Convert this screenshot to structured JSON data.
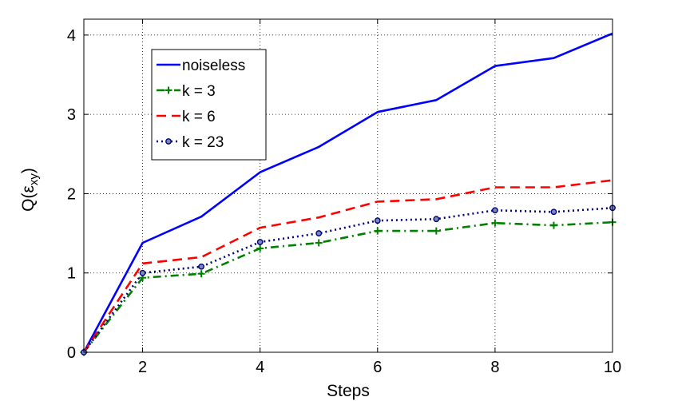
{
  "chart_data": {
    "type": "line",
    "xlabel": "Steps",
    "ylabel": {
      "main": "Q(",
      "symbol": "ε",
      "subscript": "xy",
      "close": ")"
    },
    "xlim": [
      1,
      10
    ],
    "ylim": [
      0,
      4.2
    ],
    "xticks": [
      2,
      4,
      6,
      8,
      10
    ],
    "yticks": [
      0,
      1,
      2,
      3,
      4
    ],
    "grid": true,
    "legend_position": "top-left",
    "x": [
      1,
      2,
      3,
      4,
      5,
      6,
      7,
      8,
      9,
      10
    ],
    "series": [
      {
        "name": "noiseless",
        "color": "#0000ff",
        "style": "solid",
        "marker": "none",
        "values": [
          0,
          1.38,
          1.71,
          2.27,
          2.59,
          3.03,
          3.18,
          3.61,
          3.71,
          4.02
        ]
      },
      {
        "name": "k = 3",
        "color": "#008000",
        "style": "dashdot",
        "marker": "plus",
        "values": [
          0,
          0.94,
          0.99,
          1.31,
          1.38,
          1.53,
          1.53,
          1.63,
          1.6,
          1.64
        ]
      },
      {
        "name": "k = 6",
        "color": "#ff0000",
        "style": "dashed",
        "marker": "none",
        "values": [
          0,
          1.12,
          1.2,
          1.57,
          1.7,
          1.9,
          1.93,
          2.08,
          2.08,
          2.17
        ]
      },
      {
        "name": "k = 23",
        "color": "#00007a",
        "style": "dotted",
        "marker": "circle",
        "values": [
          0,
          1.0,
          1.08,
          1.39,
          1.5,
          1.66,
          1.68,
          1.79,
          1.77,
          1.82
        ]
      }
    ]
  }
}
